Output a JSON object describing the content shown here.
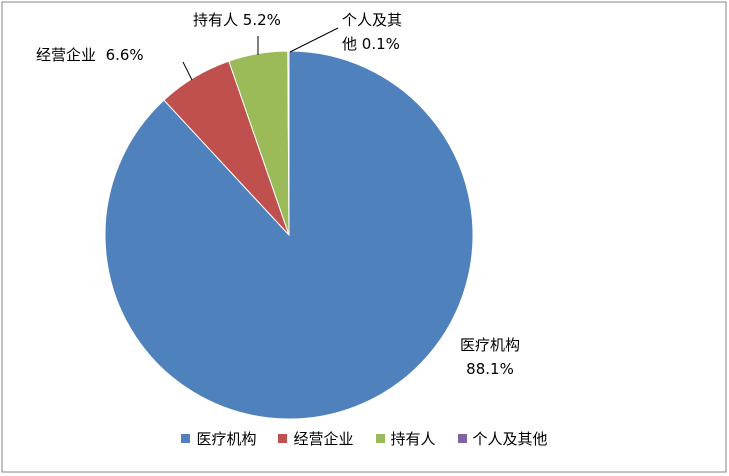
{
  "chart_data": {
    "type": "pie",
    "categories": [
      "医疗机构",
      "经营企业",
      "持有人",
      "个人及其他"
    ],
    "values": [
      88.1,
      6.6,
      5.2,
      0.1
    ],
    "value_labels": [
      "88.1%",
      "6.6%",
      "5.2%",
      "0.1%"
    ],
    "colors": [
      "#4f81bd",
      "#c0504d",
      "#9bbb59",
      "#8064a2"
    ],
    "legend": "bottom"
  }
}
